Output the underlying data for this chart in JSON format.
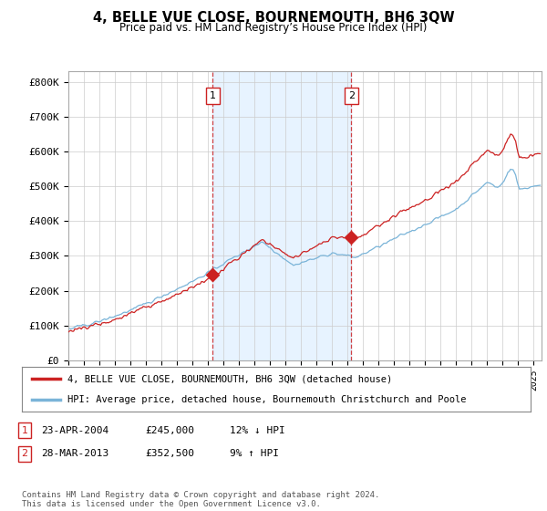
{
  "title": "4, BELLE VUE CLOSE, BOURNEMOUTH, BH6 3QW",
  "subtitle": "Price paid vs. HM Land Registry’s House Price Index (HPI)",
  "ylabel_ticks": [
    "£0",
    "£100K",
    "£200K",
    "£300K",
    "£400K",
    "£500K",
    "£600K",
    "£700K",
    "£800K"
  ],
  "ytick_values": [
    0,
    100000,
    200000,
    300000,
    400000,
    500000,
    600000,
    700000,
    800000
  ],
  "ylim": [
    0,
    830000
  ],
  "xlim_start": 1995.0,
  "xlim_end": 2025.5,
  "hpi_color": "#7ab4d8",
  "hpi_fill_color": "#ddeeff",
  "price_color": "#cc2222",
  "vline_color": "#cc2222",
  "sale1_x": 2004.31,
  "sale1_y": 245000,
  "sale1_label": "1",
  "sale2_x": 2013.24,
  "sale2_y": 352500,
  "sale2_label": "2",
  "legend_property": "4, BELLE VUE CLOSE, BOURNEMOUTH, BH6 3QW (detached house)",
  "legend_hpi": "HPI: Average price, detached house, Bournemouth Christchurch and Poole",
  "table_rows": [
    [
      "1",
      "23-APR-2004",
      "£245,000",
      "12% ↓ HPI"
    ],
    [
      "2",
      "28-MAR-2013",
      "£352,500",
      "9% ↑ HPI"
    ]
  ],
  "footnote": "Contains HM Land Registry data © Crown copyright and database right 2024.\nThis data is licensed under the Open Government Licence v3.0.",
  "background_color": "#ffffff",
  "grid_color": "#cccccc"
}
